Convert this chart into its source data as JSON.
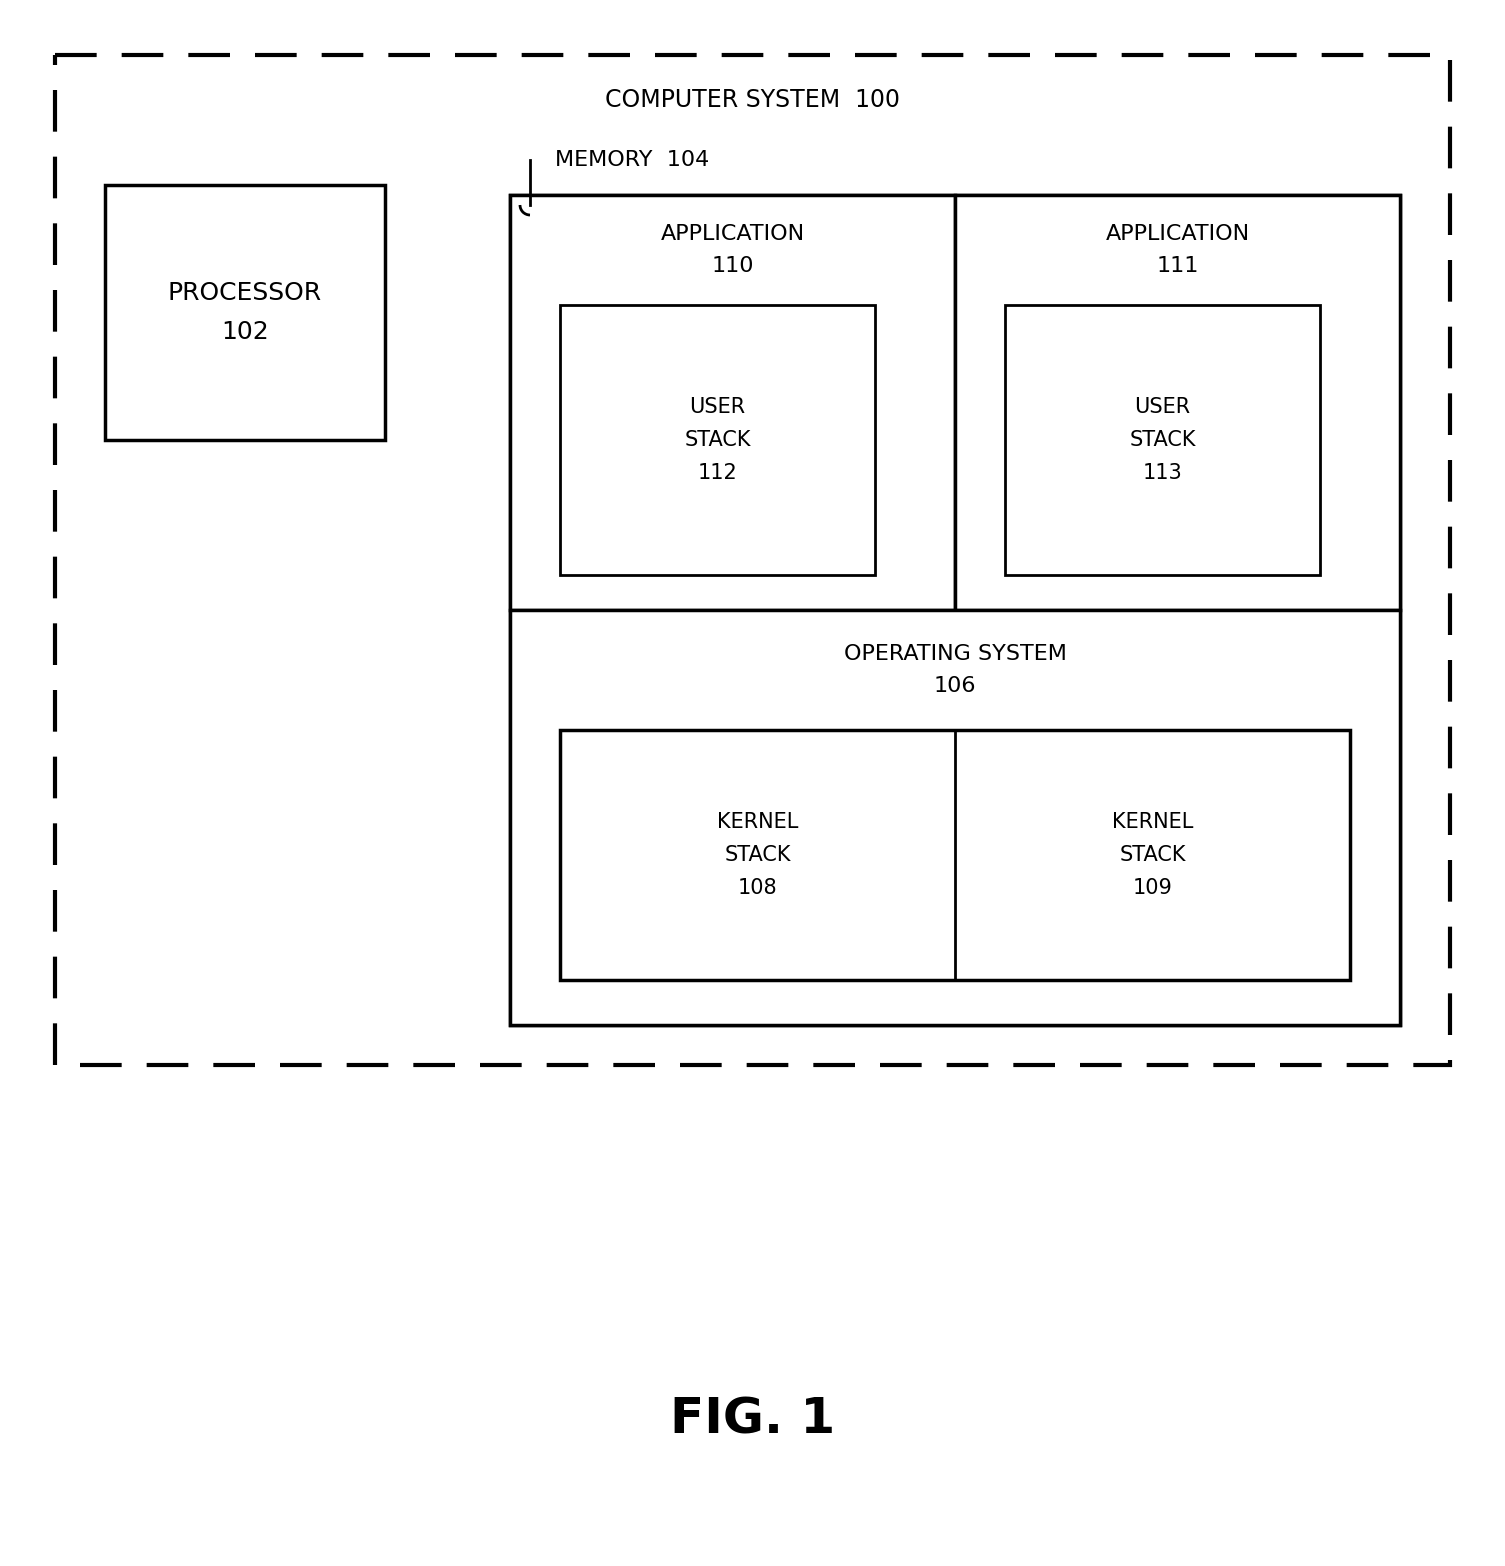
{
  "fig_width": 15.05,
  "fig_height": 15.66,
  "bg_color": "#ffffff",
  "title": "FIG. 1",
  "title_fontsize": 36,
  "title_fontweight": "bold",
  "computer_system_label": "COMPUTER SYSTEM  100",
  "computer_system_label_fontsize": 17,
  "memory_label": "MEMORY  104",
  "memory_label_fontsize": 16,
  "processor_label": "PROCESSOR\n102",
  "processor_fontsize": 18,
  "app110_label": "APPLICATION\n110",
  "app111_label": "APPLICATION\n111",
  "app_fontsize": 16,
  "user_stack112_label": "USER\nSTACK\n112",
  "user_stack113_label": "USER\nSTACK\n113",
  "user_stack_fontsize": 15,
  "os_label": "OPERATING SYSTEM\n106",
  "os_fontsize": 16,
  "kernel_stack108_label": "KERNEL\nSTACK\n108",
  "kernel_stack109_label": "KERNEL\nSTACK\n109",
  "kernel_stack_fontsize": 15,
  "line_color": "#000000",
  "fill_color": "#ffffff"
}
